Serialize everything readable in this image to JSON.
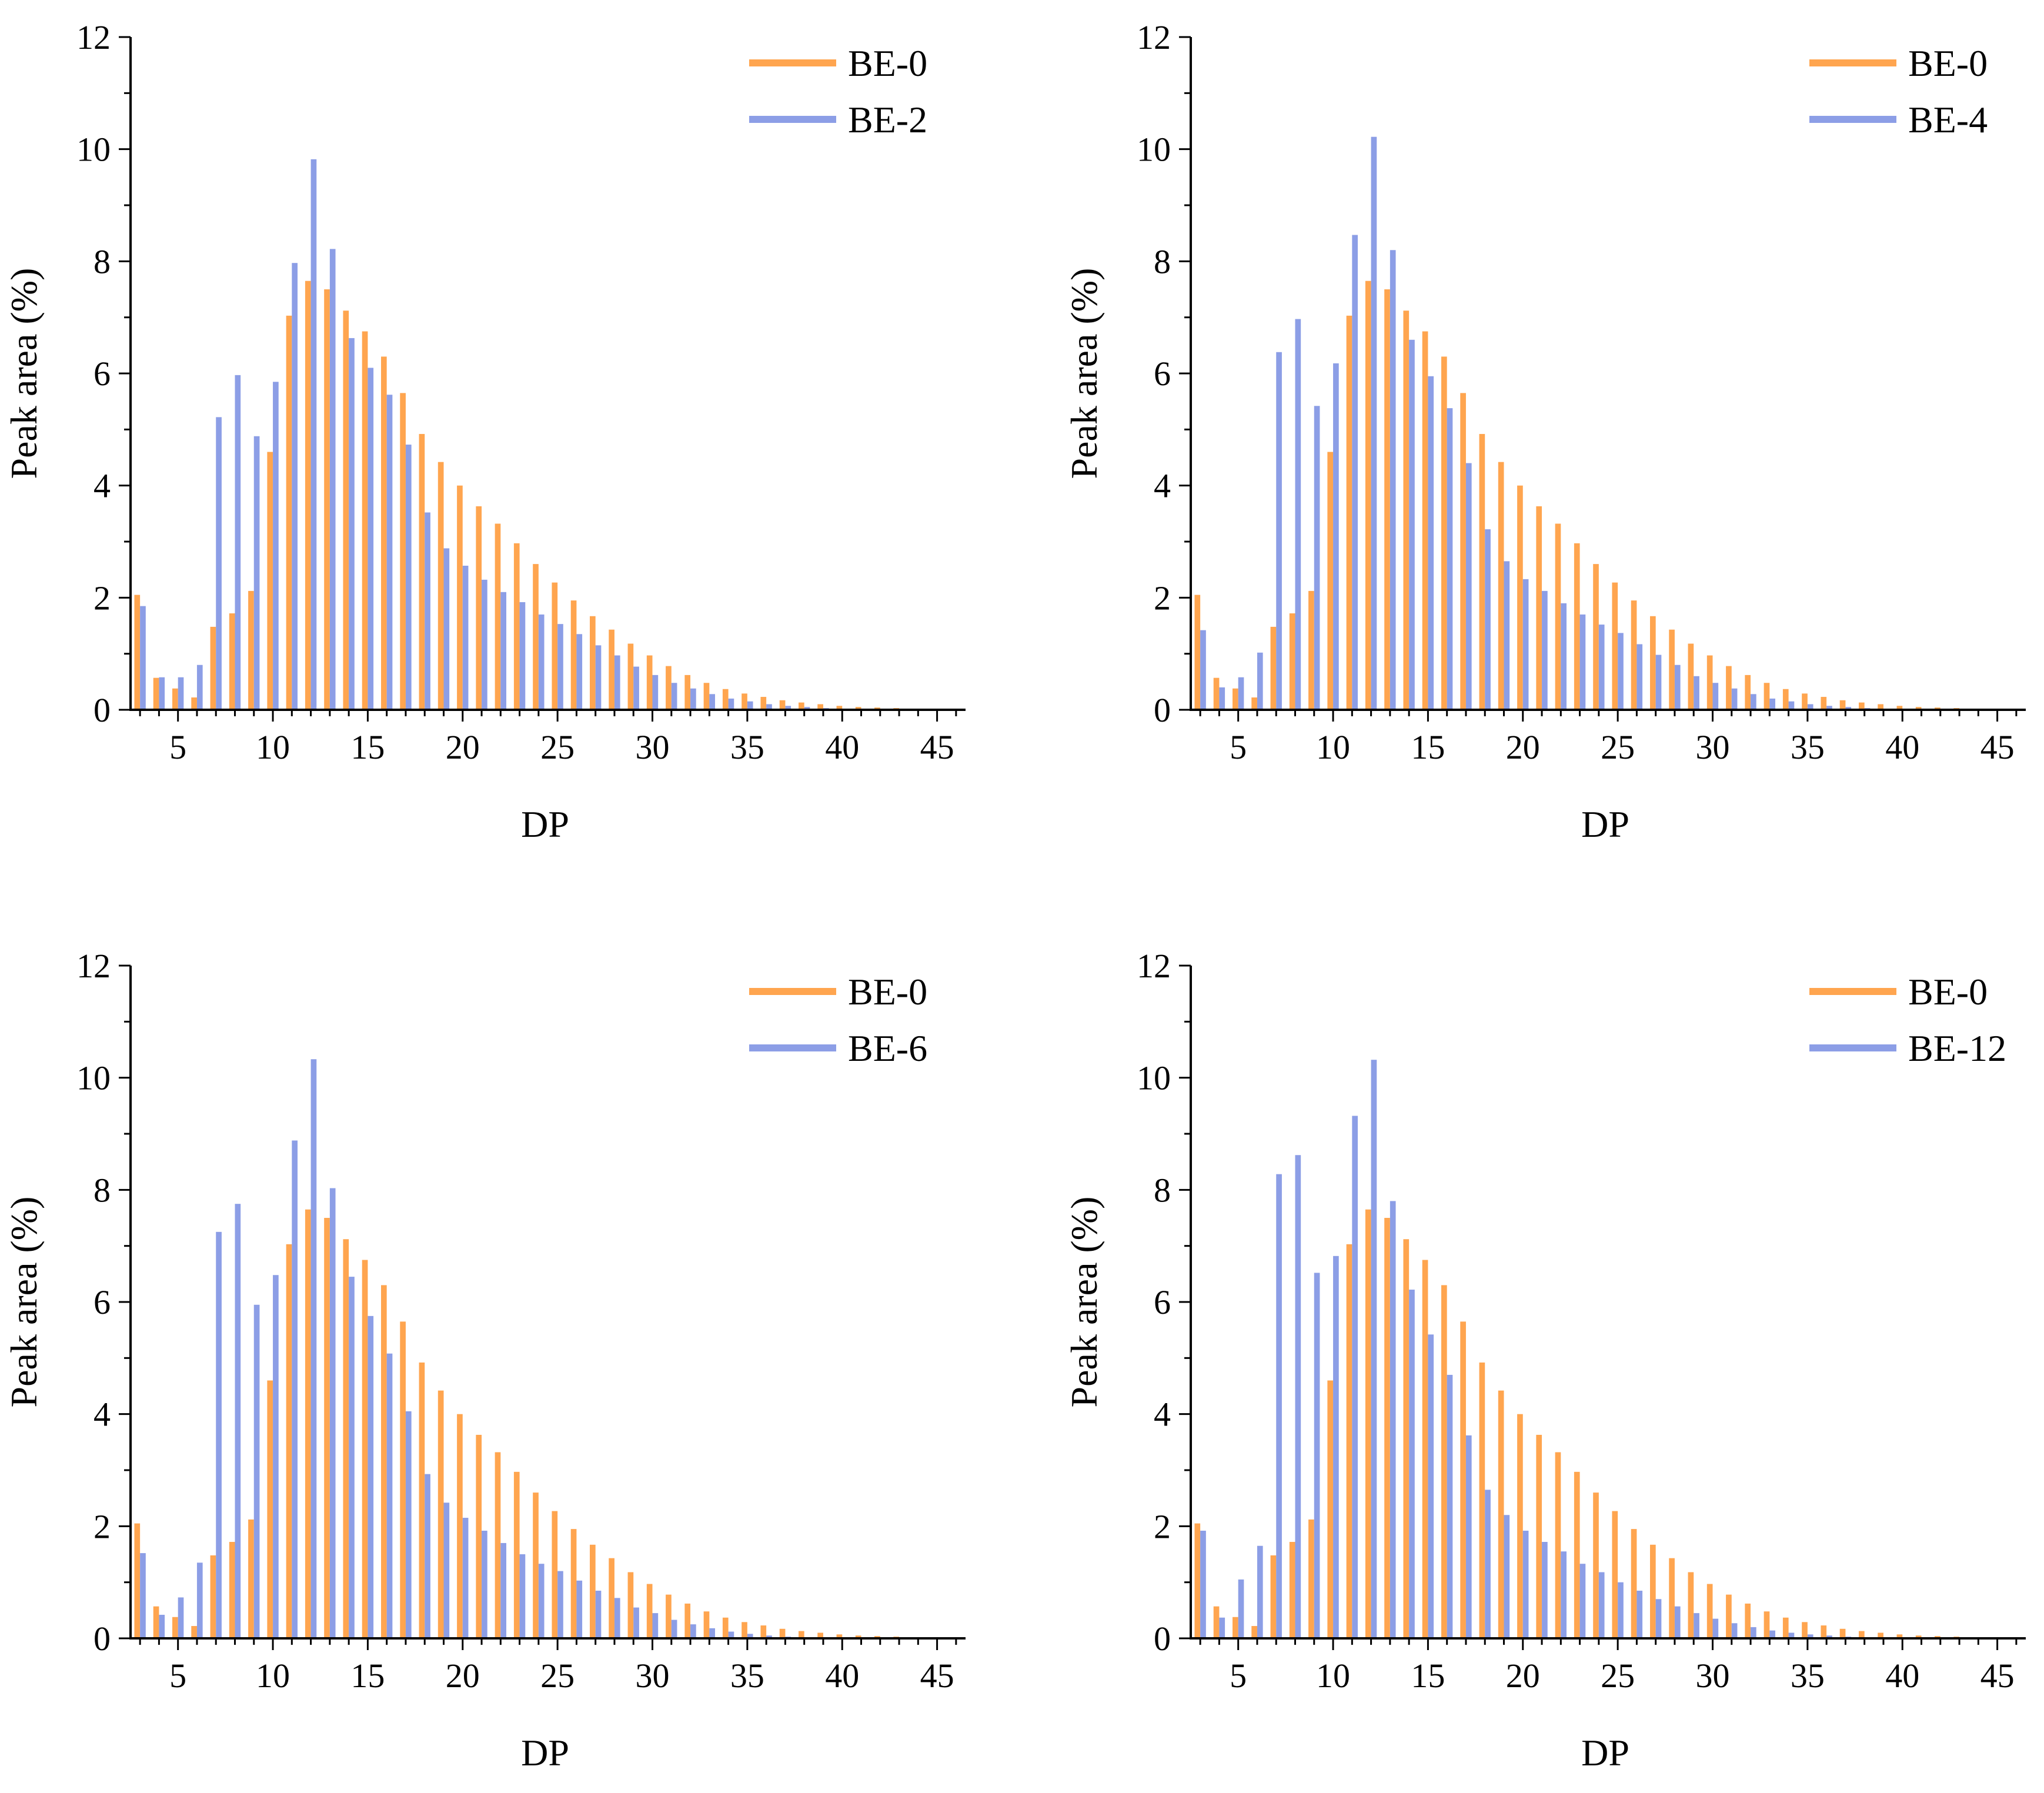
{
  "colors": {
    "reference": "#FFA54F",
    "comparison": "#8C9EE6",
    "axis": "#000000"
  },
  "chart_data": [
    {
      "type": "bar",
      "xlabel": "DP",
      "ylabel": "Peak area (%)",
      "xlim": [
        2.5,
        46.5
      ],
      "ylim": [
        0,
        12
      ],
      "xticks": [
        5,
        10,
        15,
        20,
        25,
        30,
        35,
        40,
        45
      ],
      "yticks": [
        0,
        2,
        4,
        6,
        8,
        10,
        12
      ],
      "legend_position": "top-right",
      "categories": [
        3,
        4,
        5,
        6,
        7,
        8,
        9,
        10,
        11,
        12,
        13,
        14,
        15,
        16,
        17,
        18,
        19,
        20,
        21,
        22,
        23,
        24,
        25,
        26,
        27,
        28,
        29,
        30,
        31,
        32,
        33,
        34,
        35,
        36,
        37,
        38,
        39,
        40,
        41,
        42,
        43,
        44,
        45
      ],
      "series": [
        {
          "name": "BE-0",
          "values": [
            2.05,
            0.57,
            0.38,
            0.22,
            1.48,
            1.72,
            2.12,
            4.6,
            7.03,
            7.65,
            7.5,
            7.12,
            6.75,
            6.3,
            5.65,
            4.92,
            4.42,
            4.0,
            3.63,
            3.32,
            2.97,
            2.6,
            2.27,
            1.95,
            1.67,
            1.43,
            1.18,
            0.97,
            0.78,
            0.62,
            0.48,
            0.37,
            0.29,
            0.23,
            0.17,
            0.13,
            0.1,
            0.07,
            0.05,
            0.04,
            0.03,
            0.02,
            0.01
          ]
        },
        {
          "name": "BE-2",
          "values": [
            1.85,
            0.58,
            0.58,
            0.8,
            5.22,
            5.97,
            4.88,
            5.85,
            7.97,
            9.82,
            8.22,
            6.63,
            6.1,
            5.62,
            4.73,
            3.52,
            2.88,
            2.57,
            2.32,
            2.1,
            1.92,
            1.7,
            1.53,
            1.35,
            1.15,
            0.97,
            0.77,
            0.62,
            0.48,
            0.38,
            0.28,
            0.2,
            0.15,
            0.1,
            0.07,
            0.05,
            0.03,
            0.02,
            0.01,
            0.01,
            0.0,
            0.0,
            0.0
          ]
        }
      ]
    },
    {
      "type": "bar",
      "xlabel": "DP",
      "ylabel": "Peak area (%)",
      "xlim": [
        2.5,
        46.5
      ],
      "ylim": [
        0,
        12
      ],
      "xticks": [
        5,
        10,
        15,
        20,
        25,
        30,
        35,
        40,
        45
      ],
      "yticks": [
        0,
        2,
        4,
        6,
        8,
        10,
        12
      ],
      "legend_position": "top-right",
      "categories": [
        3,
        4,
        5,
        6,
        7,
        8,
        9,
        10,
        11,
        12,
        13,
        14,
        15,
        16,
        17,
        18,
        19,
        20,
        21,
        22,
        23,
        24,
        25,
        26,
        27,
        28,
        29,
        30,
        31,
        32,
        33,
        34,
        35,
        36,
        37,
        38,
        39,
        40,
        41,
        42,
        43,
        44,
        45
      ],
      "series": [
        {
          "name": "BE-0",
          "values": [
            2.05,
            0.57,
            0.38,
            0.22,
            1.48,
            1.72,
            2.12,
            4.6,
            7.03,
            7.65,
            7.5,
            7.12,
            6.75,
            6.3,
            5.65,
            4.92,
            4.42,
            4.0,
            3.63,
            3.32,
            2.97,
            2.6,
            2.27,
            1.95,
            1.67,
            1.43,
            1.18,
            0.97,
            0.78,
            0.62,
            0.48,
            0.37,
            0.29,
            0.23,
            0.17,
            0.13,
            0.1,
            0.07,
            0.05,
            0.04,
            0.03,
            0.02,
            0.01
          ]
        },
        {
          "name": "BE-4",
          "values": [
            1.42,
            0.4,
            0.58,
            1.02,
            6.38,
            6.97,
            5.42,
            6.18,
            8.47,
            10.22,
            8.2,
            6.6,
            5.95,
            5.38,
            4.4,
            3.22,
            2.65,
            2.33,
            2.12,
            1.9,
            1.7,
            1.52,
            1.37,
            1.17,
            0.98,
            0.8,
            0.6,
            0.48,
            0.38,
            0.28,
            0.2,
            0.15,
            0.1,
            0.07,
            0.05,
            0.03,
            0.02,
            0.01,
            0.01,
            0.0,
            0.0,
            0.0,
            0.0
          ]
        }
      ]
    },
    {
      "type": "bar",
      "xlabel": "DP",
      "ylabel": "Peak area (%)",
      "xlim": [
        2.5,
        46.5
      ],
      "ylim": [
        0,
        12
      ],
      "xticks": [
        5,
        10,
        15,
        20,
        25,
        30,
        35,
        40,
        45
      ],
      "yticks": [
        0,
        2,
        4,
        6,
        8,
        10,
        12
      ],
      "legend_position": "top-right",
      "categories": [
        3,
        4,
        5,
        6,
        7,
        8,
        9,
        10,
        11,
        12,
        13,
        14,
        15,
        16,
        17,
        18,
        19,
        20,
        21,
        22,
        23,
        24,
        25,
        26,
        27,
        28,
        29,
        30,
        31,
        32,
        33,
        34,
        35,
        36,
        37,
        38,
        39,
        40,
        41,
        42,
        43,
        44,
        45
      ],
      "series": [
        {
          "name": "BE-0",
          "values": [
            2.05,
            0.57,
            0.38,
            0.22,
            1.48,
            1.72,
            2.12,
            4.6,
            7.03,
            7.65,
            7.5,
            7.12,
            6.75,
            6.3,
            5.65,
            4.92,
            4.42,
            4.0,
            3.63,
            3.32,
            2.97,
            2.6,
            2.27,
            1.95,
            1.67,
            1.43,
            1.18,
            0.97,
            0.78,
            0.62,
            0.48,
            0.37,
            0.29,
            0.23,
            0.17,
            0.13,
            0.1,
            0.07,
            0.05,
            0.04,
            0.03,
            0.02,
            0.01
          ]
        },
        {
          "name": "BE-6",
          "values": [
            1.52,
            0.42,
            0.73,
            1.35,
            7.25,
            7.75,
            5.95,
            6.48,
            8.88,
            10.33,
            8.03,
            6.45,
            5.75,
            5.08,
            4.05,
            2.93,
            2.42,
            2.15,
            1.92,
            1.7,
            1.5,
            1.33,
            1.2,
            1.03,
            0.85,
            0.72,
            0.55,
            0.45,
            0.33,
            0.25,
            0.18,
            0.12,
            0.08,
            0.05,
            0.03,
            0.02,
            0.01,
            0.01,
            0.0,
            0.0,
            0.0,
            0.0,
            0.0
          ]
        }
      ]
    },
    {
      "type": "bar",
      "xlabel": "DP",
      "ylabel": "Peak area (%)",
      "xlim": [
        2.5,
        46.5
      ],
      "ylim": [
        0,
        12
      ],
      "xticks": [
        5,
        10,
        15,
        20,
        25,
        30,
        35,
        40,
        45
      ],
      "yticks": [
        0,
        2,
        4,
        6,
        8,
        10,
        12
      ],
      "legend_position": "top-right",
      "categories": [
        3,
        4,
        5,
        6,
        7,
        8,
        9,
        10,
        11,
        12,
        13,
        14,
        15,
        16,
        17,
        18,
        19,
        20,
        21,
        22,
        23,
        24,
        25,
        26,
        27,
        28,
        29,
        30,
        31,
        32,
        33,
        34,
        35,
        36,
        37,
        38,
        39,
        40,
        41,
        42,
        43,
        44,
        45
      ],
      "series": [
        {
          "name": "BE-0",
          "values": [
            2.05,
            0.57,
            0.38,
            0.22,
            1.48,
            1.72,
            2.12,
            4.6,
            7.03,
            7.65,
            7.5,
            7.12,
            6.75,
            6.3,
            5.65,
            4.92,
            4.42,
            4.0,
            3.63,
            3.32,
            2.97,
            2.6,
            2.27,
            1.95,
            1.67,
            1.43,
            1.18,
            0.97,
            0.78,
            0.62,
            0.48,
            0.37,
            0.29,
            0.23,
            0.17,
            0.13,
            0.1,
            0.07,
            0.05,
            0.04,
            0.03,
            0.02,
            0.01
          ]
        },
        {
          "name": "BE-12",
          "values": [
            1.92,
            0.37,
            1.05,
            1.65,
            8.28,
            8.62,
            6.52,
            6.82,
            9.32,
            10.32,
            7.8,
            6.22,
            5.42,
            4.7,
            3.62,
            2.65,
            2.2,
            1.92,
            1.72,
            1.55,
            1.33,
            1.18,
            1.0,
            0.85,
            0.7,
            0.57,
            0.45,
            0.35,
            0.27,
            0.2,
            0.14,
            0.1,
            0.07,
            0.05,
            0.03,
            0.02,
            0.01,
            0.01,
            0.0,
            0.0,
            0.0,
            0.0,
            0.0
          ]
        }
      ]
    }
  ]
}
